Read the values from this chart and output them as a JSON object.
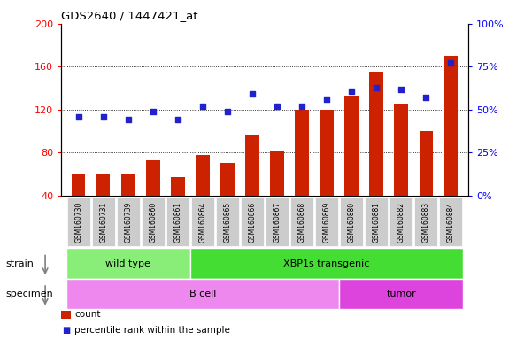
{
  "title": "GDS2640 / 1447421_at",
  "samples": [
    "GSM160730",
    "GSM160731",
    "GSM160739",
    "GSM160860",
    "GSM160861",
    "GSM160864",
    "GSM160865",
    "GSM160866",
    "GSM160867",
    "GSM160868",
    "GSM160869",
    "GSM160880",
    "GSM160881",
    "GSM160882",
    "GSM160883",
    "GSM160884"
  ],
  "counts": [
    60,
    60,
    60,
    73,
    57,
    78,
    70,
    97,
    82,
    120,
    120,
    133,
    155,
    125,
    100,
    170
  ],
  "percentiles": [
    46,
    46,
    44,
    49,
    44,
    52,
    49,
    59,
    52,
    52,
    56,
    61,
    63,
    62,
    57,
    77
  ],
  "bar_color": "#cc2200",
  "dot_color": "#2222cc",
  "left_ylim": [
    40,
    200
  ],
  "left_yticks": [
    40,
    80,
    120,
    160,
    200
  ],
  "right_ylim": [
    0,
    100
  ],
  "right_yticks": [
    0,
    25,
    50,
    75,
    100
  ],
  "right_yticklabels": [
    "0%",
    "25%",
    "50%",
    "75%",
    "100%"
  ],
  "strain_groups": [
    {
      "label": "wild type",
      "start": 0,
      "end": 4,
      "color": "#88ee77"
    },
    {
      "label": "XBP1s transgenic",
      "start": 5,
      "end": 15,
      "color": "#44dd33"
    }
  ],
  "specimen_groups": [
    {
      "label": "B cell",
      "start": 0,
      "end": 10,
      "color": "#ee88ee"
    },
    {
      "label": "tumor",
      "start": 11,
      "end": 15,
      "color": "#dd44dd"
    }
  ],
  "legend_count_label": "count",
  "legend_pct_label": "percentile rank within the sample",
  "xlabel_strain": "strain",
  "xlabel_specimen": "specimen",
  "tick_label_bg": "#cccccc",
  "tick_label_border": "#888888"
}
